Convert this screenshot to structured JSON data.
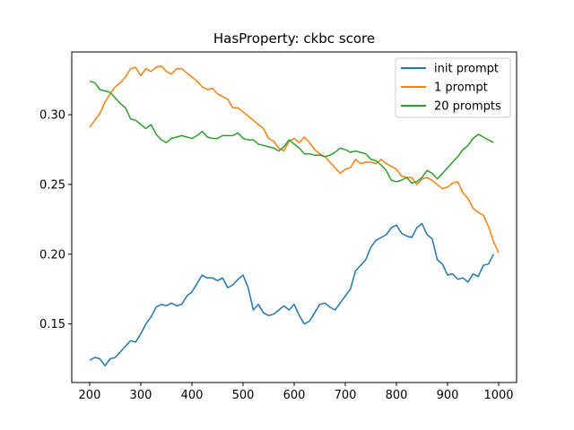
{
  "chart_data": {
    "type": "line",
    "title": "HasProperty: ckbc score",
    "xlabel": "",
    "ylabel": "",
    "xlim": [
      165,
      1035
    ],
    "ylim": [
      0.108,
      0.345
    ],
    "xticks": [
      200,
      300,
      400,
      500,
      600,
      700,
      800,
      900,
      1000
    ],
    "yticks": [
      0.15,
      0.2,
      0.25,
      0.3
    ],
    "ytick_labels": [
      "0.15",
      "0.20",
      "0.25",
      "0.30"
    ],
    "grid": false,
    "legend_position": "top-right",
    "series": [
      {
        "name": "init prompt",
        "color": "#1f77b4",
        "x": [
          200,
          210,
          220,
          230,
          240,
          250,
          260,
          270,
          280,
          290,
          300,
          310,
          320,
          330,
          340,
          350,
          360,
          370,
          380,
          390,
          400,
          410,
          420,
          430,
          440,
          450,
          460,
          470,
          480,
          490,
          500,
          510,
          520,
          530,
          540,
          550,
          560,
          570,
          580,
          590,
          600,
          610,
          620,
          630,
          640,
          650,
          660,
          670,
          680,
          690,
          700,
          710,
          720,
          730,
          740,
          750,
          760,
          770,
          780,
          790,
          800,
          810,
          820,
          830,
          840,
          850,
          860,
          870,
          880,
          890,
          900,
          910,
          920,
          930,
          940,
          950,
          960,
          970,
          980,
          990
        ],
        "y": [
          0.124,
          0.126,
          0.125,
          0.12,
          0.125,
          0.126,
          0.13,
          0.134,
          0.138,
          0.137,
          0.143,
          0.15,
          0.155,
          0.162,
          0.164,
          0.163,
          0.165,
          0.163,
          0.164,
          0.17,
          0.173,
          0.179,
          0.185,
          0.183,
          0.183,
          0.181,
          0.183,
          0.176,
          0.178,
          0.182,
          0.185,
          0.176,
          0.16,
          0.164,
          0.158,
          0.156,
          0.157,
          0.16,
          0.163,
          0.16,
          0.164,
          0.156,
          0.15,
          0.152,
          0.158,
          0.164,
          0.165,
          0.162,
          0.16,
          0.165,
          0.17,
          0.175,
          0.188,
          0.192,
          0.196,
          0.205,
          0.21,
          0.212,
          0.214,
          0.219,
          0.221,
          0.215,
          0.213,
          0.212,
          0.219,
          0.222,
          0.214,
          0.211,
          0.196,
          0.193,
          0.185,
          0.186,
          0.182,
          0.183,
          0.18,
          0.186,
          0.184,
          0.192,
          0.193,
          0.2
        ]
      },
      {
        "name": "1 prompt",
        "color": "#ff7f0e",
        "x": [
          200,
          210,
          220,
          230,
          240,
          250,
          260,
          270,
          280,
          290,
          300,
          310,
          320,
          330,
          340,
          350,
          360,
          370,
          380,
          390,
          400,
          410,
          420,
          430,
          440,
          450,
          460,
          470,
          480,
          490,
          500,
          510,
          520,
          530,
          540,
          550,
          560,
          570,
          580,
          590,
          600,
          610,
          620,
          630,
          640,
          650,
          660,
          670,
          680,
          690,
          700,
          710,
          720,
          730,
          740,
          750,
          760,
          770,
          780,
          790,
          800,
          810,
          820,
          830,
          840,
          850,
          860,
          870,
          880,
          890,
          900,
          910,
          920,
          930,
          940,
          950,
          960,
          970,
          980,
          990,
          1000
        ],
        "y": [
          0.291,
          0.296,
          0.301,
          0.309,
          0.315,
          0.32,
          0.323,
          0.327,
          0.333,
          0.334,
          0.328,
          0.333,
          0.331,
          0.334,
          0.335,
          0.331,
          0.329,
          0.333,
          0.333,
          0.33,
          0.327,
          0.324,
          0.32,
          0.318,
          0.319,
          0.315,
          0.313,
          0.311,
          0.305,
          0.305,
          0.302,
          0.299,
          0.296,
          0.293,
          0.29,
          0.283,
          0.281,
          0.276,
          0.274,
          0.281,
          0.283,
          0.28,
          0.284,
          0.28,
          0.275,
          0.272,
          0.27,
          0.266,
          0.262,
          0.258,
          0.261,
          0.262,
          0.268,
          0.265,
          0.266,
          0.266,
          0.265,
          0.268,
          0.265,
          0.263,
          0.261,
          0.256,
          0.255,
          0.255,
          0.25,
          0.254,
          0.255,
          0.253,
          0.25,
          0.247,
          0.248,
          0.251,
          0.252,
          0.244,
          0.24,
          0.233,
          0.23,
          0.228,
          0.22,
          0.209,
          0.201
        ]
      },
      {
        "name": "20 prompts",
        "color": "#2ca02c",
        "x": [
          200,
          210,
          220,
          230,
          240,
          250,
          260,
          270,
          280,
          290,
          300,
          310,
          320,
          330,
          340,
          350,
          360,
          370,
          380,
          390,
          400,
          410,
          420,
          430,
          440,
          450,
          460,
          470,
          480,
          490,
          500,
          510,
          520,
          530,
          540,
          550,
          560,
          570,
          580,
          590,
          600,
          610,
          620,
          630,
          640,
          650,
          660,
          670,
          680,
          690,
          700,
          710,
          720,
          730,
          740,
          750,
          760,
          770,
          780,
          790,
          800,
          810,
          820,
          830,
          840,
          850,
          860,
          870,
          880,
          890,
          900,
          910,
          920,
          930,
          940,
          950,
          960,
          970,
          980,
          990
        ],
        "y": [
          0.324,
          0.323,
          0.318,
          0.317,
          0.316,
          0.312,
          0.308,
          0.305,
          0.297,
          0.296,
          0.293,
          0.29,
          0.293,
          0.286,
          0.282,
          0.28,
          0.283,
          0.284,
          0.285,
          0.284,
          0.283,
          0.285,
          0.288,
          0.284,
          0.283,
          0.283,
          0.285,
          0.285,
          0.285,
          0.287,
          0.283,
          0.282,
          0.282,
          0.279,
          0.278,
          0.277,
          0.276,
          0.274,
          0.277,
          0.282,
          0.279,
          0.276,
          0.272,
          0.272,
          0.271,
          0.271,
          0.27,
          0.271,
          0.273,
          0.276,
          0.275,
          0.273,
          0.274,
          0.273,
          0.272,
          0.268,
          0.267,
          0.264,
          0.26,
          0.253,
          0.252,
          0.253,
          0.255,
          0.251,
          0.252,
          0.255,
          0.26,
          0.258,
          0.254,
          0.258,
          0.262,
          0.266,
          0.27,
          0.275,
          0.278,
          0.283,
          0.286,
          0.284,
          0.282,
          0.28
        ]
      }
    ]
  }
}
